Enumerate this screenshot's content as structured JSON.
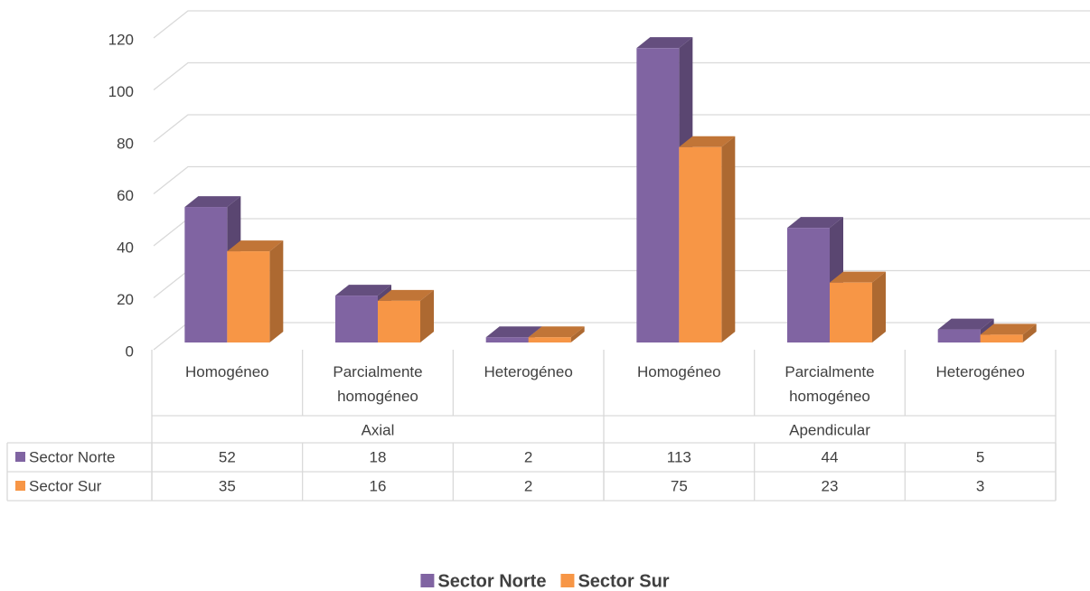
{
  "chart_data": {
    "type": "bar3d",
    "groups": [
      {
        "name": "Axial",
        "categories": [
          "Homogéneo",
          "Parcialmente homogéneo",
          "Heterogéneo"
        ]
      },
      {
        "name": "Apendicular",
        "categories": [
          "Homogéneo",
          "Parcialmente homogéneo",
          "Heterogéneo"
        ]
      }
    ],
    "series": [
      {
        "name": "Sector Norte",
        "color": "#8064a2",
        "values": [
          52,
          18,
          2,
          113,
          44,
          5
        ]
      },
      {
        "name": "Sector Sur",
        "color": "#f79646",
        "values": [
          35,
          16,
          2,
          75,
          23,
          3
        ]
      }
    ],
    "ylim": [
      0,
      120
    ],
    "yticks": [
      0,
      20,
      40,
      60,
      80,
      100,
      120
    ],
    "grid": true,
    "legend": "bottom"
  }
}
